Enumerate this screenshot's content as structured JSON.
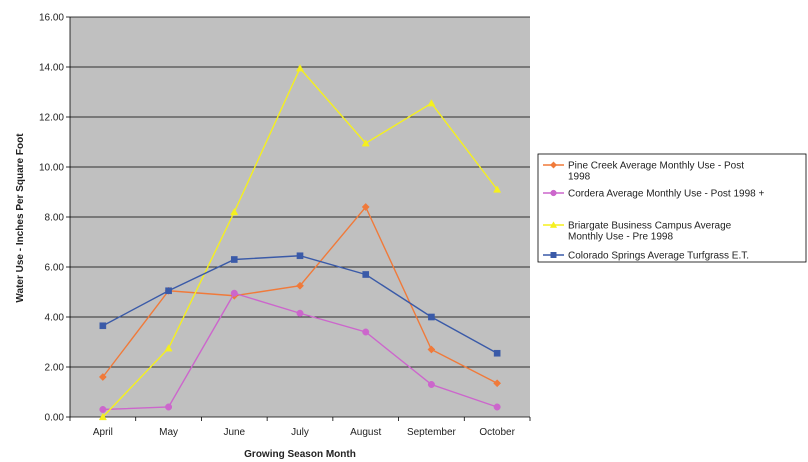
{
  "chart_data": {
    "type": "line",
    "title": "",
    "xlabel": "Growing Season Month",
    "ylabel": "Water Use - Inches Per Square Foot",
    "categories": [
      "April",
      "May",
      "June",
      "July",
      "August",
      "September",
      "October"
    ],
    "ylim": [
      0,
      16
    ],
    "yticks": [
      "0.00",
      "2.00",
      "4.00",
      "6.00",
      "8.00",
      "10.00",
      "12.00",
      "14.00",
      "16.00"
    ],
    "grid": true,
    "plot_background": "#c0c0c0",
    "legend_position": "right",
    "series": [
      {
        "name": "Pine Creek Average Monthly Use - Post 1998",
        "legend_lines": [
          "Pine Creek Average Monthly Use - Post",
          "1998"
        ],
        "color": "#f07a3a",
        "marker": "diamond",
        "values": [
          1.6,
          5.05,
          4.85,
          5.25,
          8.4,
          2.7,
          1.35
        ]
      },
      {
        "name": "Cordera Average Monthly Use - Post 1998 +",
        "legend_lines": [
          "Cordera Average Monthly Use - Post 1998 +"
        ],
        "color": "#cc66cc",
        "marker": "circle",
        "values": [
          0.3,
          0.4,
          4.95,
          4.15,
          3.4,
          1.3,
          0.4
        ]
      },
      {
        "name": "Briargate Business Campus Average Monthly Use - Pre 1998",
        "legend_lines": [
          "Briargate Business Campus Average",
          "Monthly Use - Pre 1998"
        ],
        "color": "#f5f01e",
        "marker": "triangle",
        "values": [
          0.0,
          2.75,
          8.2,
          13.95,
          10.95,
          12.55,
          9.1
        ]
      },
      {
        "name": "Colorado Springs Average Turfgrass E.T.",
        "legend_lines": [
          "Colorado Springs Average Turfgrass E.T."
        ],
        "color": "#3a5aa8",
        "marker": "square",
        "values": [
          3.65,
          5.05,
          6.3,
          6.45,
          5.7,
          4.0,
          2.55
        ]
      }
    ]
  }
}
